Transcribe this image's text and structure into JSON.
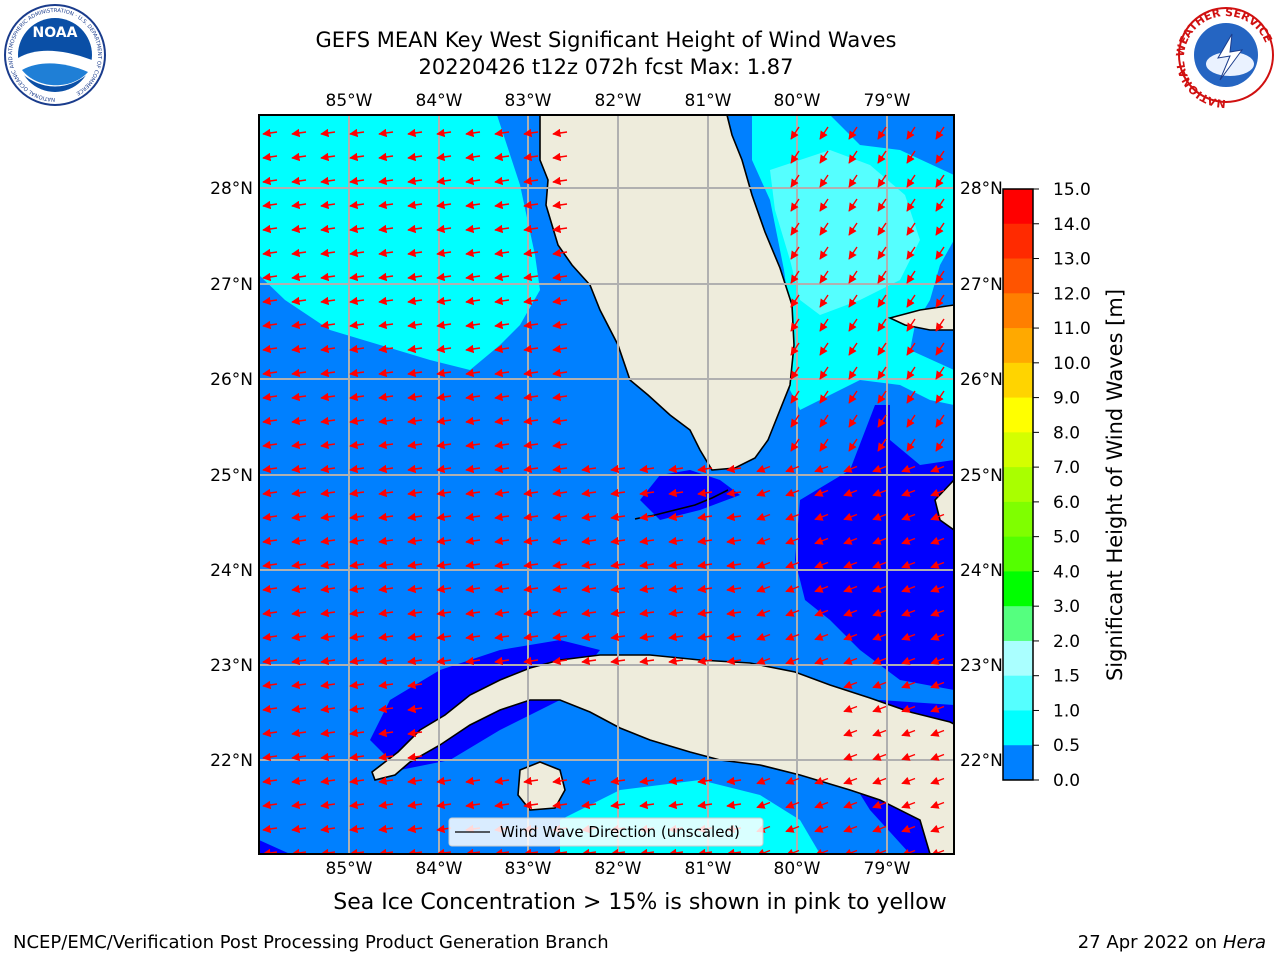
{
  "header": {
    "title_line1": "GEFS MEAN Key West Significant Height of Wind Waves",
    "title_line2": "20220426 t12z 072h fcst   Max: 1.87"
  },
  "map": {
    "lon_labels": [
      "85°W",
      "84°W",
      "83°W",
      "82°W",
      "81°W",
      "80°W",
      "79°W"
    ],
    "lat_labels": [
      "28°N",
      "27°N",
      "26°N",
      "25°N",
      "24°N",
      "23°N",
      "22°N"
    ],
    "legend_label": "Wind Wave Direction (unscaled)",
    "colors": {
      "land": "#eeecdc",
      "band_0_0p5": "#0000ff",
      "band_0p5_1": "#0080ff",
      "band_1_1p5": "#00ffff",
      "band_1p5_2": "#55ffff",
      "arrow": "#ff0000",
      "grid": "#b0b0b0"
    }
  },
  "colorbar": {
    "label": "Significant Height of Wind Waves [m]",
    "ticks": [
      "15.0",
      "14.0",
      "13.0",
      "12.0",
      "11.0",
      "10.0",
      "9.0",
      "8.0",
      "7.0",
      "6.0",
      "5.0",
      "4.0",
      "3.0",
      "2.0",
      "1.5",
      "1.0",
      "0.5",
      "0.0"
    ],
    "colors": [
      "#ff0000",
      "#ff2a00",
      "#ff5400",
      "#ff7f00",
      "#ffa900",
      "#ffd400",
      "#ffff00",
      "#d4ff00",
      "#a9ff00",
      "#7fff00",
      "#54ff00",
      "#00ff00",
      "#55ff7f",
      "#aaffff",
      "#55ffff",
      "#00ffff",
      "#0080ff",
      "#0000ff"
    ]
  },
  "notes": {
    "ice": "Sea Ice Concentration > 15% is shown in pink to yellow",
    "footer_left": "NCEP/EMC/Verification Post Processing Product Generation Branch",
    "footer_date": "27 Apr 2022 on",
    "footer_host": "Hera"
  },
  "logos": {
    "noaa": "NOAA",
    "noaa_ring": "NATIONAL OCEANIC AND ATMOSPHERIC ADMINISTRATION · U.S. DEPARTMENT OF COMMERCE",
    "nws_ring": "NATIONAL WEATHER SERVICE"
  }
}
